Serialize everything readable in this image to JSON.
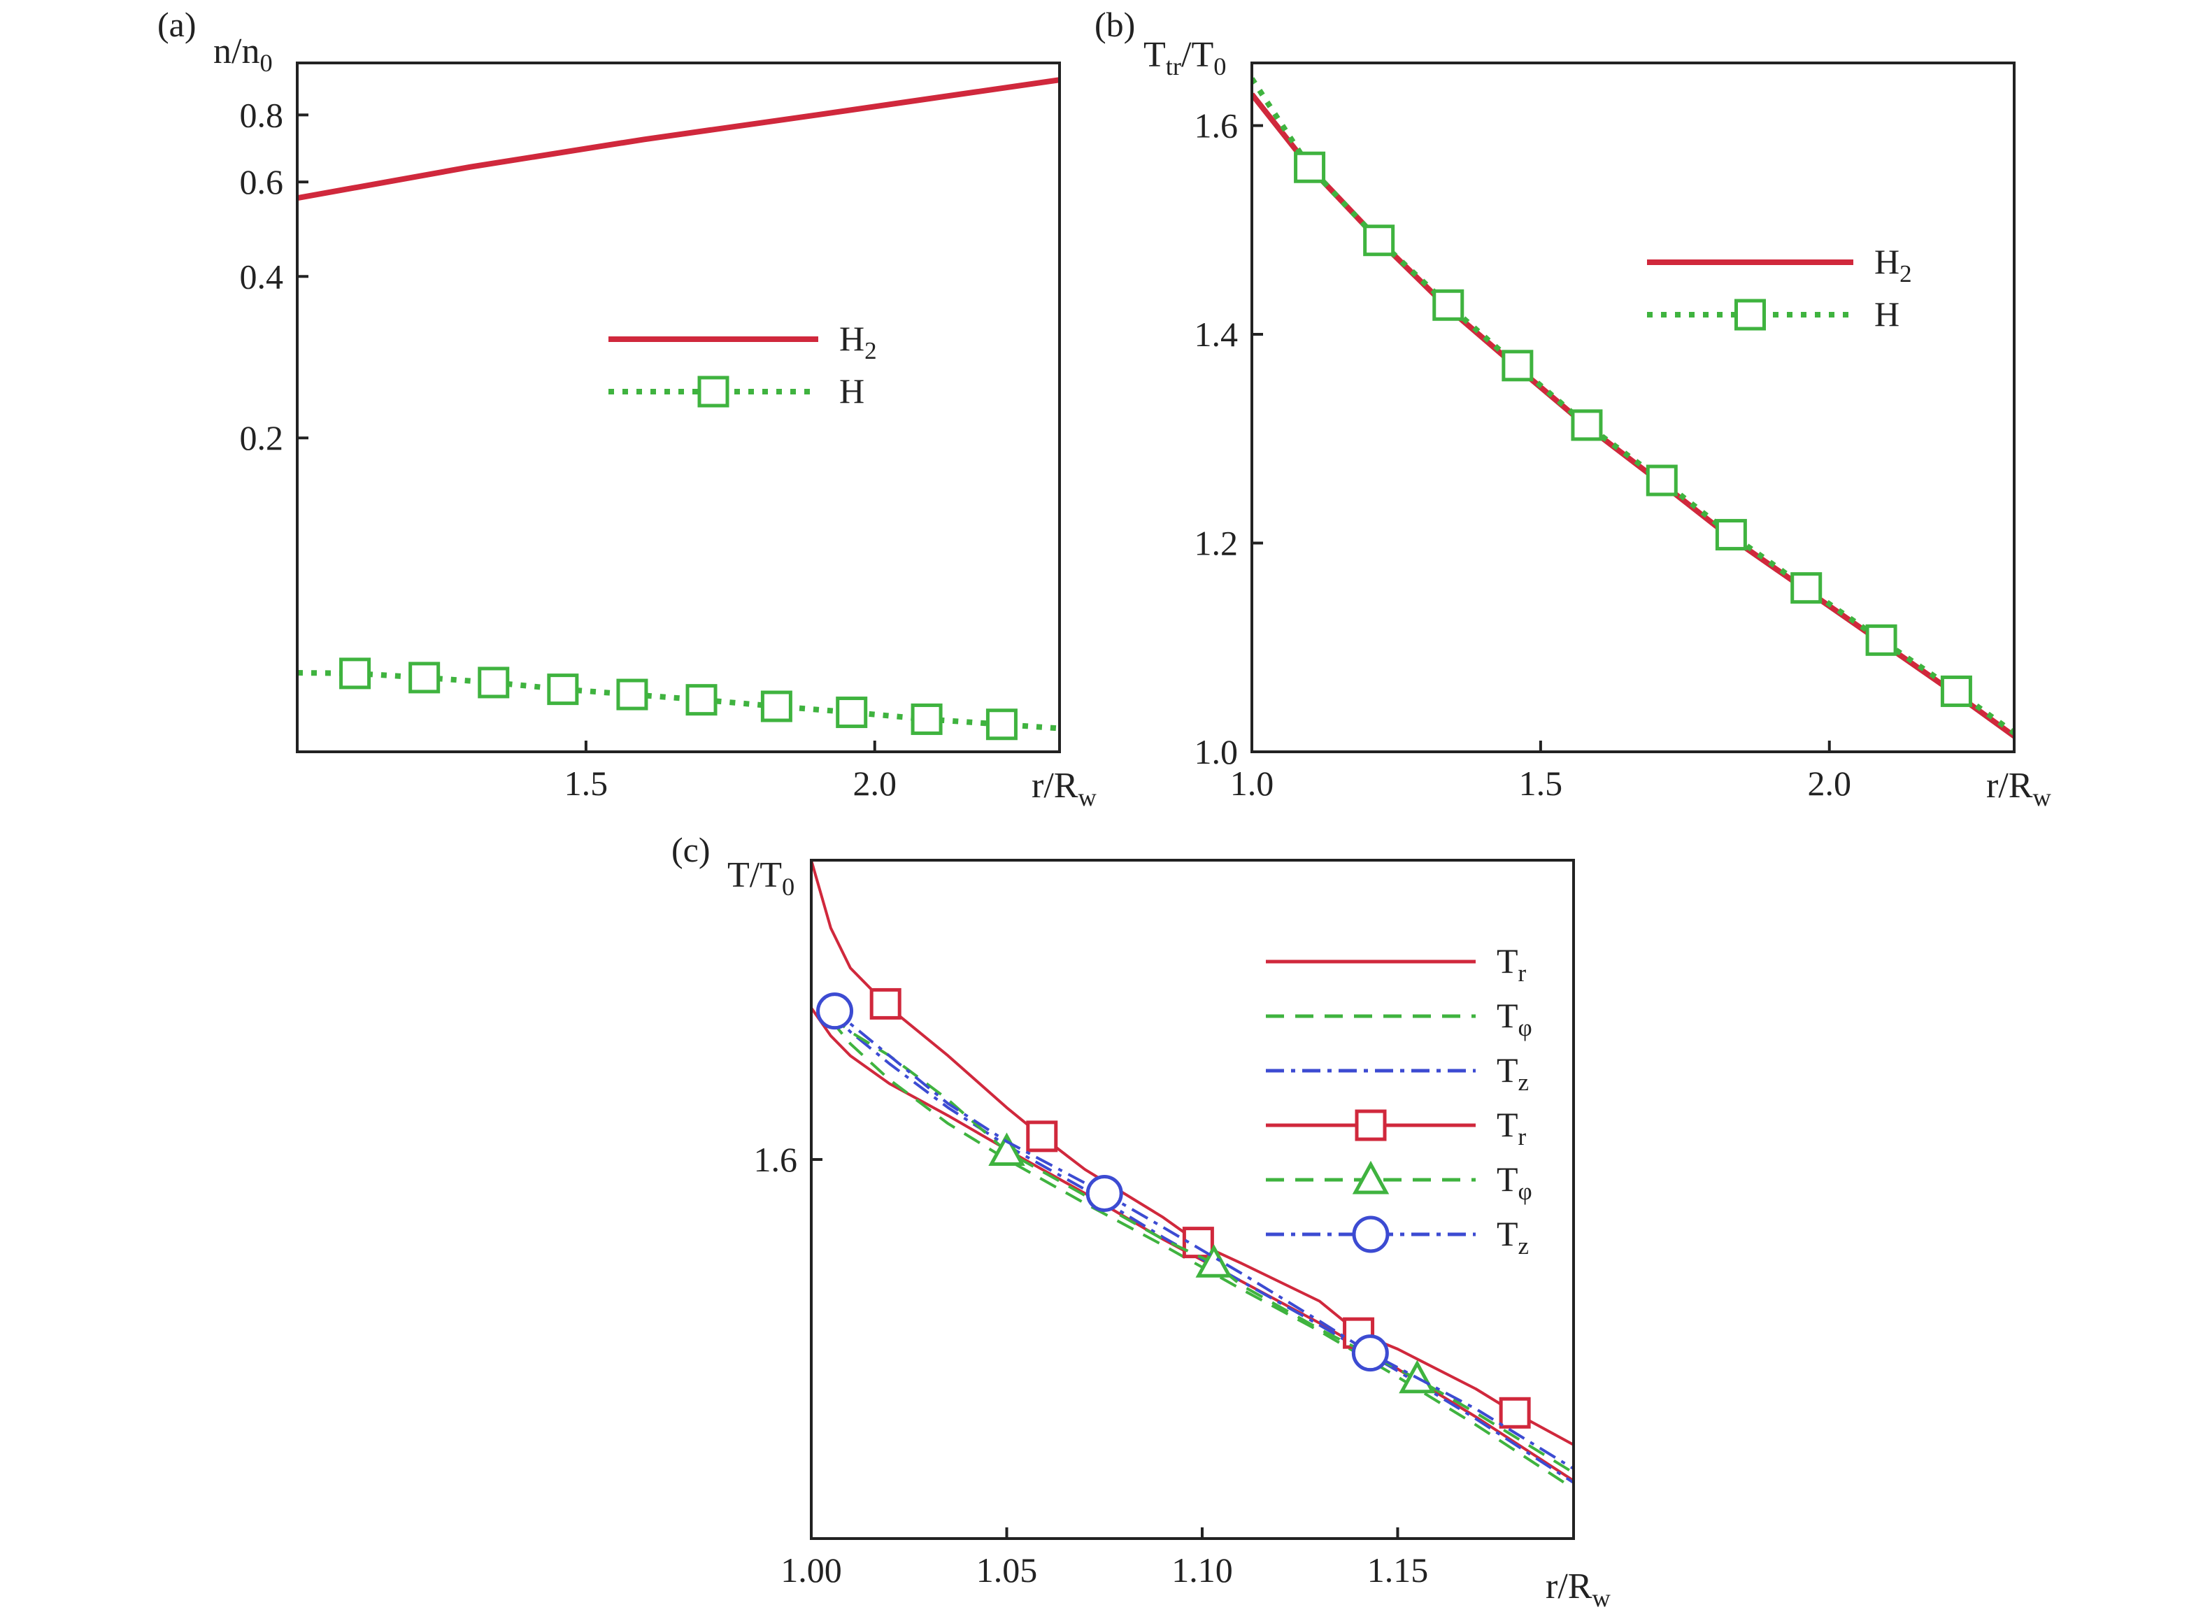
{
  "colors": {
    "red": "#d0283c",
    "green": "#3fb33f",
    "blue": "#3c4bd2",
    "axis": "#222222",
    "background": "#ffffff"
  },
  "chart_data": [
    {
      "panel": "(a)",
      "type": "line",
      "xlabel": {
        "base": "r/R",
        "sub": "w"
      },
      "ylabel": {
        "base": "n/n",
        "sub": "0"
      },
      "xlim": [
        1.0,
        2.32
      ],
      "ylim": [
        0.052,
        1.0
      ],
      "yscale": "log",
      "x_ticks": [
        "1.5",
        "2.0"
      ],
      "x_tick_values": [
        1.5,
        2.0
      ],
      "y_ticks": [
        "0.2",
        "0.4",
        "0.6",
        "0.8"
      ],
      "y_tick_values": [
        0.2,
        0.4,
        0.6,
        0.8
      ],
      "grid": false,
      "legend_position": "center",
      "series": [
        {
          "name": {
            "base": "H",
            "sub": "2"
          },
          "style": "solid",
          "marker": "none",
          "color": "red",
          "x": [
            1.0,
            1.3,
            1.6,
            1.9,
            2.32
          ],
          "y": [
            0.56,
            0.64,
            0.72,
            0.8,
            0.93
          ]
        },
        {
          "name": {
            "base": "H",
            "sub": ""
          },
          "style": "dotted",
          "marker": "square",
          "color": "green",
          "x": [
            1.0,
            1.1,
            1.22,
            1.34,
            1.46,
            1.58,
            1.7,
            1.83,
            1.96,
            2.09,
            2.22,
            2.32
          ],
          "y": [
            0.073,
            0.0728,
            0.0715,
            0.07,
            0.068,
            0.0665,
            0.065,
            0.0632,
            0.0616,
            0.0598,
            0.0585,
            0.0575
          ],
          "marker_x": [
            1.1,
            1.22,
            1.34,
            1.46,
            1.58,
            1.7,
            1.83,
            1.96,
            2.09,
            2.22
          ]
        }
      ]
    },
    {
      "panel": "(b)",
      "type": "line",
      "xlabel": {
        "base": "r/R",
        "sub": "w"
      },
      "ylabel": {
        "base": "T",
        "sub": "tr",
        "base2": "/T",
        "sub2": "0"
      },
      "xlim": [
        1.0,
        2.32
      ],
      "ylim": [
        1.0,
        1.66
      ],
      "yscale": "linear",
      "x_ticks": [
        "1.0",
        "1.5",
        "2.0"
      ],
      "x_tick_values": [
        1.0,
        1.5,
        2.0
      ],
      "y_ticks": [
        "1.0",
        "1.2",
        "1.4",
        "1.6"
      ],
      "y_tick_values": [
        1.0,
        1.2,
        1.4,
        1.6
      ],
      "grid": false,
      "legend_position": "upper-right",
      "series": [
        {
          "name": {
            "base": "H",
            "sub": "2"
          },
          "style": "solid",
          "marker": "none",
          "color": "red",
          "x": [
            1.0,
            1.1,
            1.22,
            1.34,
            1.46,
            1.58,
            1.71,
            1.83,
            1.96,
            2.09,
            2.22,
            2.32
          ],
          "y": [
            1.63,
            1.56,
            1.49,
            1.425,
            1.368,
            1.312,
            1.257,
            1.205,
            1.155,
            1.105,
            1.055,
            1.015
          ]
        },
        {
          "name": {
            "base": "H",
            "sub": ""
          },
          "style": "dotted",
          "marker": "square",
          "color": "green",
          "x": [
            1.0,
            1.1,
            1.22,
            1.34,
            1.46,
            1.58,
            1.71,
            1.83,
            1.96,
            2.09,
            2.22,
            2.32
          ],
          "y": [
            1.645,
            1.56,
            1.49,
            1.428,
            1.37,
            1.313,
            1.26,
            1.208,
            1.157,
            1.107,
            1.058,
            1.018
          ],
          "marker_x": [
            1.1,
            1.22,
            1.34,
            1.46,
            1.58,
            1.71,
            1.83,
            1.96,
            2.09,
            2.22
          ]
        }
      ]
    },
    {
      "panel": "(c)",
      "type": "line",
      "xlabel": {
        "base": "r/R",
        "sub": "w"
      },
      "ylabel": {
        "base": "T/T",
        "sub": "0"
      },
      "xlim": [
        1.0,
        1.195
      ],
      "ylim": [
        1.505,
        1.675
      ],
      "yscale": "linear",
      "x_ticks": [
        "1.00",
        "1.05",
        "1.10",
        "1.15"
      ],
      "x_tick_values": [
        1.0,
        1.05,
        1.1,
        1.15
      ],
      "y_ticks": [
        "1.6"
      ],
      "y_tick_values": [
        1.6
      ],
      "grid": false,
      "legend_position": "upper-right",
      "series": [
        {
          "name": {
            "base": "T",
            "sub": "r"
          },
          "style": "solid",
          "marker": "none",
          "color": "red",
          "x": [
            1.0,
            1.005,
            1.01,
            1.02,
            1.035,
            1.05,
            1.07,
            1.09,
            1.11,
            1.13,
            1.15,
            1.17,
            1.195
          ],
          "y": [
            1.638,
            1.631,
            1.626,
            1.619,
            1.611,
            1.6025,
            1.5915,
            1.58,
            1.5695,
            1.559,
            1.5475,
            1.5355,
            1.5195
          ]
        },
        {
          "name": {
            "base": "T",
            "sub": "φ"
          },
          "style": "dashed",
          "marker": "none",
          "color": "green",
          "x": [
            1.005,
            1.01,
            1.02,
            1.035,
            1.05,
            1.07,
            1.09,
            1.11,
            1.13,
            1.15,
            1.17,
            1.195
          ],
          "y": [
            1.635,
            1.629,
            1.62,
            1.609,
            1.6,
            1.589,
            1.5785,
            1.5675,
            1.557,
            1.5455,
            1.5335,
            1.5175
          ]
        },
        {
          "name": {
            "base": "T",
            "sub": "z"
          },
          "style": "dashdot",
          "marker": "none",
          "color": "blue",
          "x": [
            1.005,
            1.01,
            1.02,
            1.035,
            1.05,
            1.07,
            1.09,
            1.11,
            1.13,
            1.15,
            1.17,
            1.195
          ],
          "y": [
            1.637,
            1.632,
            1.624,
            1.613,
            1.6035,
            1.5925,
            1.5805,
            1.5695,
            1.5585,
            1.547,
            1.535,
            1.519
          ]
        },
        {
          "name": {
            "base": "T",
            "sub": "r"
          },
          "style": "solid",
          "marker": "square",
          "color": "red",
          "x": [
            1.0,
            1.005,
            1.01,
            1.02,
            1.035,
            1.05,
            1.06,
            1.07,
            1.09,
            1.1,
            1.11,
            1.13,
            1.14,
            1.15,
            1.17,
            1.18,
            1.195
          ],
          "y": [
            1.675,
            1.658,
            1.648,
            1.638,
            1.626,
            1.613,
            1.605,
            1.5975,
            1.5855,
            1.5785,
            1.574,
            1.5645,
            1.5565,
            1.5525,
            1.5425,
            1.5365,
            1.5285
          ],
          "marker_x": [
            1.019,
            1.059,
            1.099,
            1.14,
            1.18
          ]
        },
        {
          "name": {
            "base": "T",
            "sub": "φ"
          },
          "style": "dashed",
          "marker": "triangle",
          "color": "green",
          "x": [
            1.005,
            1.01,
            1.02,
            1.035,
            1.05,
            1.07,
            1.09,
            1.103,
            1.11,
            1.13,
            1.155,
            1.17,
            1.195
          ],
          "y": [
            1.636,
            1.632,
            1.626,
            1.615,
            1.602,
            1.591,
            1.58,
            1.574,
            1.5685,
            1.5575,
            1.545,
            1.5365,
            1.5215
          ],
          "marker_x": [
            1.05,
            1.103,
            1.155
          ]
        },
        {
          "name": {
            "base": "T",
            "sub": "z"
          },
          "style": "dashdot",
          "marker": "circle",
          "color": "blue",
          "x": [
            1.005,
            1.01,
            1.02,
            1.035,
            1.05,
            1.075,
            1.09,
            1.11,
            1.13,
            1.143,
            1.17,
            1.195
          ],
          "y": [
            1.638,
            1.634,
            1.626,
            1.614,
            1.6045,
            1.5915,
            1.583,
            1.5715,
            1.5595,
            1.5515,
            1.5375,
            1.5225
          ],
          "marker_x": [
            1.006,
            1.075,
            1.143
          ]
        }
      ]
    }
  ]
}
